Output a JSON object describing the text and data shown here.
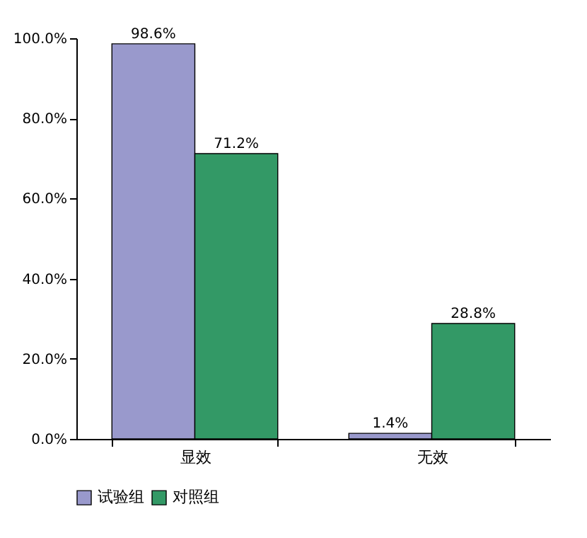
{
  "chart_data": {
    "type": "bar",
    "categories": [
      "显效",
      "无效"
    ],
    "series": [
      {
        "name": "试验组",
        "color": "#9999cc",
        "values": [
          98.6,
          1.4
        ],
        "value_labels": [
          "98.6%",
          "1.4%"
        ]
      },
      {
        "name": "对照组",
        "color": "#339966",
        "values": [
          71.2,
          28.8
        ],
        "value_labels": [
          "71.2%",
          "28.8%"
        ]
      }
    ],
    "ylim": [
      0,
      100
    ],
    "yticks": [
      {
        "value": 0,
        "label": "0.0%"
      },
      {
        "value": 20,
        "label": "20.0%"
      },
      {
        "value": 40,
        "label": "40.0%"
      },
      {
        "value": 60,
        "label": "60.0%"
      },
      {
        "value": 80,
        "label": "80.0%"
      },
      {
        "value": 100,
        "label": "100.0%"
      }
    ],
    "grid": false,
    "legend": "bottom"
  }
}
